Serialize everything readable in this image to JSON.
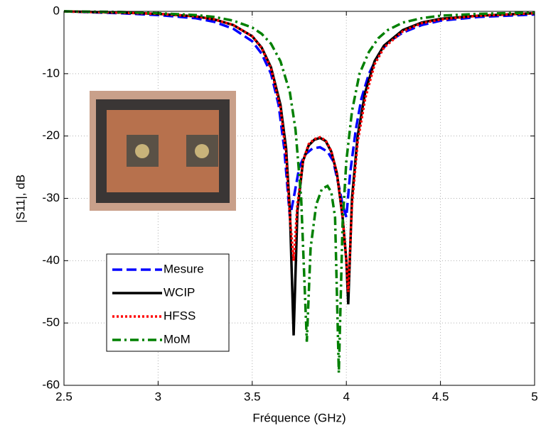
{
  "chart_data": {
    "type": "line",
    "xlabel": "Fréquence (GHz)",
    "ylabel": "|S11|, dB",
    "xlim": [
      2.5,
      5
    ],
    "ylim": [
      -60,
      0
    ],
    "xticks": [
      2.5,
      3,
      3.5,
      4,
      4.5,
      5
    ],
    "yticks": [
      0,
      -10,
      -20,
      -30,
      -40,
      -50,
      -60
    ],
    "grid": true,
    "legend": "lower left",
    "series": [
      {
        "name": "Mesure",
        "color": "#0000ff",
        "style": "dashed",
        "x": [
          2.5,
          2.8,
          3.0,
          3.2,
          3.3,
          3.4,
          3.5,
          3.55,
          3.6,
          3.64,
          3.67,
          3.7,
          3.72,
          3.75,
          3.78,
          3.82,
          3.86,
          3.9,
          3.93,
          3.96,
          3.98,
          4.0,
          4.02,
          4.05,
          4.08,
          4.12,
          4.17,
          4.22,
          4.3,
          4.4,
          4.5,
          4.7,
          5.0
        ],
        "values": [
          0,
          -0.3,
          -0.6,
          -1.1,
          -1.7,
          -2.8,
          -4.8,
          -6.8,
          -10,
          -15,
          -22,
          -33,
          -30,
          -25,
          -23,
          -22,
          -21.8,
          -22.5,
          -24,
          -28,
          -31,
          -33,
          -26,
          -19,
          -14,
          -10,
          -7,
          -5,
          -3.4,
          -2.2,
          -1.5,
          -0.9,
          -0.5
        ]
      },
      {
        "name": "WCIP",
        "color": "#000000",
        "style": "solid",
        "x": [
          2.5,
          2.8,
          3.0,
          3.2,
          3.3,
          3.4,
          3.5,
          3.55,
          3.6,
          3.65,
          3.68,
          3.7,
          3.72,
          3.74,
          3.77,
          3.8,
          3.83,
          3.86,
          3.89,
          3.92,
          3.95,
          3.98,
          4.0,
          4.01,
          4.03,
          4.06,
          4.1,
          4.15,
          4.2,
          4.3,
          4.4,
          4.5,
          4.7,
          5.0
        ],
        "values": [
          0,
          -0.2,
          -0.4,
          -0.8,
          -1.3,
          -2.2,
          -4,
          -5.8,
          -9,
          -15,
          -22,
          -32,
          -52,
          -32,
          -24,
          -21.5,
          -20.6,
          -20.3,
          -20.8,
          -22.5,
          -26,
          -33,
          -40,
          -47,
          -30,
          -20,
          -13,
          -8,
          -5.5,
          -3,
          -1.8,
          -1.2,
          -0.7,
          -0.3
        ]
      },
      {
        "name": "HFSS",
        "color": "#ff0000",
        "style": "dotted",
        "x": [
          2.5,
          2.8,
          3.0,
          3.2,
          3.3,
          3.4,
          3.5,
          3.55,
          3.6,
          3.65,
          3.68,
          3.7,
          3.72,
          3.74,
          3.77,
          3.8,
          3.83,
          3.86,
          3.89,
          3.92,
          3.95,
          3.98,
          4.0,
          4.01,
          4.03,
          4.06,
          4.1,
          4.15,
          4.2,
          4.3,
          4.4,
          4.5,
          4.7,
          5.0
        ],
        "values": [
          0,
          -0.2,
          -0.4,
          -0.8,
          -1.3,
          -2.2,
          -4,
          -5.9,
          -9.2,
          -15.5,
          -23,
          -33,
          -40,
          -31,
          -24,
          -21.3,
          -20.5,
          -20.2,
          -20.7,
          -22.4,
          -26,
          -33,
          -40,
          -45,
          -31,
          -21,
          -14,
          -8.5,
          -5.8,
          -3.2,
          -1.9,
          -1.3,
          -0.7,
          -0.3
        ]
      },
      {
        "name": "MoM",
        "color": "#008000",
        "style": "dashdot",
        "x": [
          2.5,
          2.8,
          3.0,
          3.2,
          3.3,
          3.4,
          3.5,
          3.55,
          3.6,
          3.65,
          3.7,
          3.73,
          3.76,
          3.79,
          3.81,
          3.84,
          3.87,
          3.9,
          3.92,
          3.94,
          3.96,
          3.98,
          4.0,
          4.03,
          4.07,
          4.12,
          4.17,
          4.22,
          4.3,
          4.4,
          4.5,
          4.7,
          5.0
        ],
        "values": [
          0,
          -0.1,
          -0.3,
          -0.6,
          -0.9,
          -1.5,
          -2.6,
          -3.6,
          -5.2,
          -8,
          -13,
          -19,
          -30,
          -53,
          -38,
          -31,
          -28.5,
          -28,
          -29,
          -33,
          -58,
          -34,
          -24,
          -16,
          -10,
          -6.5,
          -4.3,
          -3,
          -1.8,
          -1.1,
          -0.7,
          -0.4,
          -0.2
        ]
      }
    ]
  }
}
